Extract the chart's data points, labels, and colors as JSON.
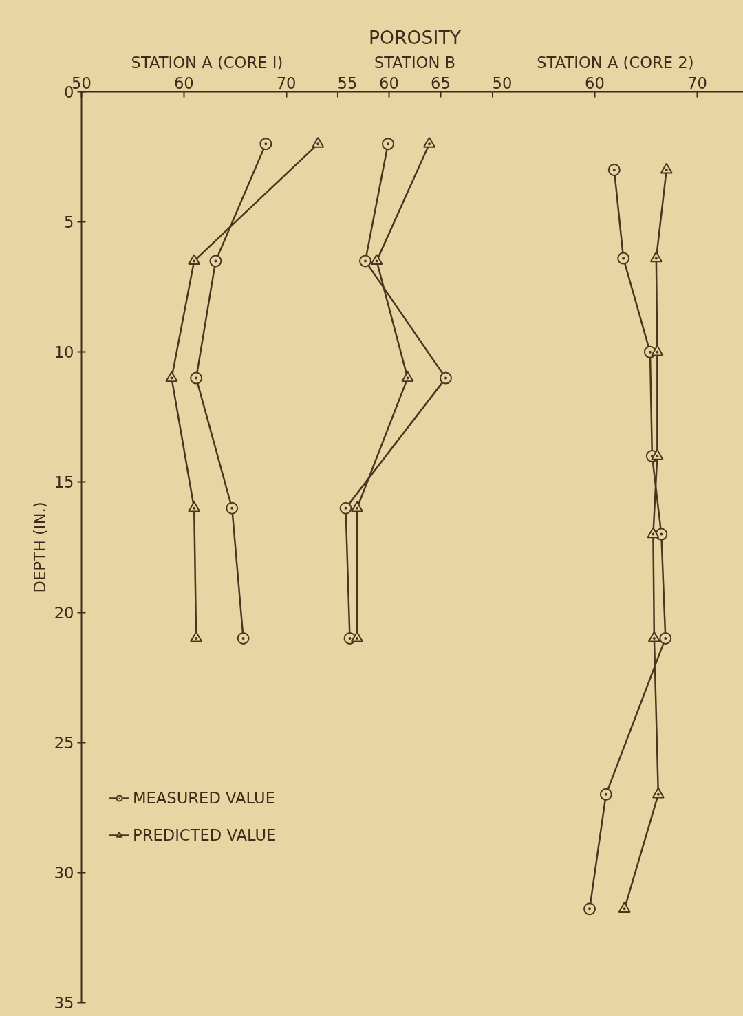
{
  "chart_data": [
    {
      "type": "line",
      "xlabel": "STATION A  (CORE I)",
      "ylabel": "DEPTH (IN.)",
      "xlim": [
        50,
        75
      ],
      "xticks": [
        50,
        60,
        70
      ],
      "ylim": [
        35,
        0
      ],
      "yticks": [
        0,
        5,
        10,
        15,
        20,
        25,
        30,
        35
      ],
      "grid": false,
      "legend": "bottom left",
      "series": [
        {
          "name": "MEASURED VALUE",
          "color": "#4a3520",
          "marker": "circle",
          "x": [
            68.0,
            63.1,
            61.2,
            64.7,
            65.8
          ],
          "values": [
            2,
            6.5,
            11,
            16,
            21
          ]
        },
        {
          "name": "PREDICTED VALUE",
          "color": "#4a3520",
          "marker": "triangle",
          "x": [
            73.1,
            61.0,
            58.8,
            61.0,
            61.2
          ],
          "values": [
            2,
            6.5,
            11,
            16,
            21
          ]
        }
      ]
    },
    {
      "type": "line",
      "title": "POROSITY",
      "xlabel": "STATION B",
      "xlim": [
        55,
        70
      ],
      "xticks": [
        55,
        60,
        65
      ],
      "ylim": [
        35,
        0
      ],
      "tick_labels": "x",
      "grid": false,
      "series": [
        {
          "color": "#4a3520",
          "marker": "circle",
          "x": [
            59.9,
            57.7,
            65.5,
            55.8,
            56.2
          ],
          "values": [
            2,
            6.5,
            11,
            16,
            21
          ]
        },
        {
          "color": "#4a3520",
          "marker": "triangle",
          "x": [
            63.9,
            58.8,
            61.8,
            56.9,
            56.9
          ],
          "values": [
            2,
            6.5,
            11,
            16,
            21
          ]
        }
      ]
    },
    {
      "type": "line",
      "xlabel": "STATION A  (CORE 2)",
      "xlim": [
        50,
        74.5
      ],
      "xticks": [
        50,
        60,
        70
      ],
      "ylim": [
        35,
        0
      ],
      "tick_labels": "x",
      "grid": false,
      "series": [
        {
          "color": "#4a3520",
          "marker": "circle",
          "x": [
            61.9,
            62.8,
            65.4,
            65.6,
            66.5,
            66.9,
            61.1,
            59.5
          ],
          "values": [
            3,
            6.4,
            10,
            14,
            17,
            21,
            27,
            31.4
          ]
        },
        {
          "color": "#4a3520",
          "marker": "triangle",
          "x": [
            67.0,
            66.0,
            66.1,
            66.1,
            65.7,
            65.8,
            66.2,
            62.9
          ],
          "values": [
            3,
            6.4,
            10,
            14,
            17,
            21,
            27,
            31.4
          ]
        }
      ]
    }
  ]
}
